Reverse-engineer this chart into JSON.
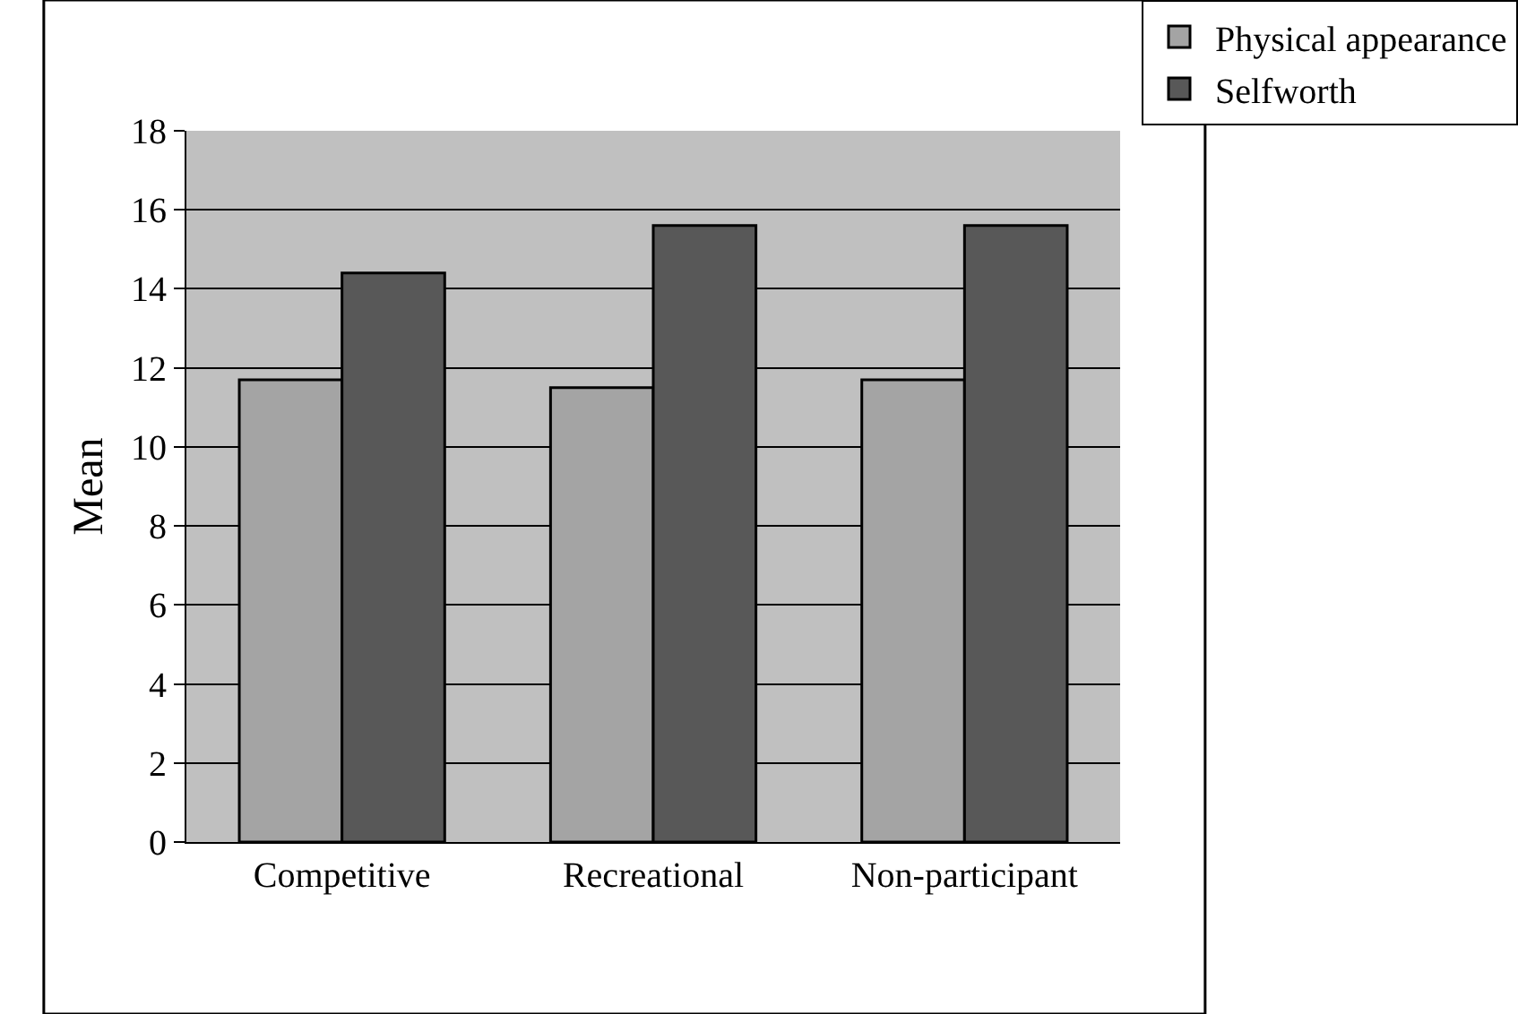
{
  "chart_data": {
    "type": "bar",
    "ylabel": "Mean",
    "categories": [
      "Competitive",
      "Recreational",
      "Non-participant"
    ],
    "series": [
      {
        "name": "Physical appearance",
        "color": "#a4a4a4",
        "values": [
          11.7,
          11.5,
          11.7
        ]
      },
      {
        "name": "Selfworth",
        "color": "#585858",
        "values": [
          14.4,
          15.6,
          15.6
        ]
      }
    ],
    "ylim": [
      0,
      18
    ],
    "yticks": [
      0,
      2,
      4,
      6,
      8,
      10,
      12,
      14,
      16,
      18
    ],
    "grid": "y",
    "legend": "top right"
  }
}
